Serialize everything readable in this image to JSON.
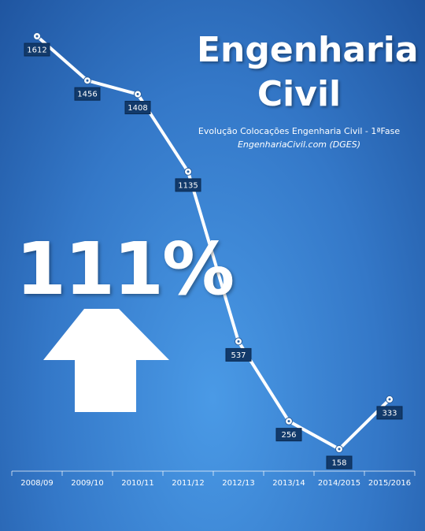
{
  "chart_data": {
    "type": "line",
    "title": "Engenharia Civil",
    "subtitle": "Evolução Colocações Engenharia Civil - 1ªFase",
    "source": "EngenhariaCivil.com  (DGES)",
    "annotation": "111%",
    "categories": [
      "2008/09",
      "2009/10",
      "2010/11",
      "2011/12",
      "2012/13",
      "2013/14",
      "2014/2015",
      "2015/2016"
    ],
    "values": [
      1612,
      1456,
      1408,
      1135,
      537,
      256,
      158,
      333
    ],
    "color": "#ffffff"
  }
}
